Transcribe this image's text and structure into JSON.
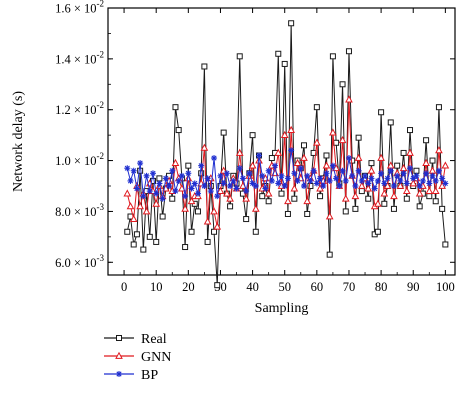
{
  "chart_data": {
    "type": "line",
    "xlabel": "Sampling",
    "ylabel": "Network delay (s)",
    "xlim": [
      -5,
      103
    ],
    "ylim": [
      0.0055,
      0.016
    ],
    "xticks": [
      0,
      10,
      20,
      30,
      40,
      50,
      60,
      70,
      80,
      90,
      100
    ],
    "yticks": [
      {
        "value": 0.006,
        "mantissa": "6.0",
        "exponent": "-3"
      },
      {
        "value": 0.008,
        "mantissa": "8.0",
        "exponent": "-3"
      },
      {
        "value": 0.01,
        "mantissa": "1.0",
        "exponent": "-2"
      },
      {
        "value": 0.012,
        "mantissa": "1.2",
        "exponent": "-2"
      },
      {
        "value": 0.014,
        "mantissa": "1.4",
        "exponent": "-2"
      },
      {
        "value": 0.016,
        "mantissa": "1.6",
        "exponent": "-2"
      }
    ],
    "grid": false,
    "legend_position": "bottom-left",
    "x": [
      1,
      2,
      3,
      4,
      5,
      6,
      7,
      8,
      9,
      10,
      11,
      12,
      13,
      14,
      15,
      16,
      17,
      18,
      19,
      20,
      21,
      22,
      23,
      24,
      25,
      26,
      27,
      28,
      29,
      30,
      31,
      32,
      33,
      34,
      35,
      36,
      37,
      38,
      39,
      40,
      41,
      42,
      43,
      44,
      45,
      46,
      47,
      48,
      49,
      50,
      51,
      52,
      53,
      54,
      55,
      56,
      57,
      58,
      59,
      60,
      61,
      62,
      63,
      64,
      65,
      66,
      67,
      68,
      69,
      70,
      71,
      72,
      73,
      74,
      75,
      76,
      77,
      78,
      79,
      80,
      81,
      82,
      83,
      84,
      85,
      86,
      87,
      88,
      89,
      90,
      91,
      92,
      93,
      94,
      95,
      96,
      97,
      98,
      99,
      100
    ],
    "series": [
      {
        "name": "Real",
        "color": "#1a1a1a",
        "marker": "square",
        "values": [
          0.0072,
          0.0078,
          0.0067,
          0.0071,
          0.0096,
          0.0065,
          0.0088,
          0.007,
          0.0092,
          0.0068,
          0.0093,
          0.0078,
          0.0089,
          0.0094,
          0.0085,
          0.0121,
          0.0112,
          0.0093,
          0.0066,
          0.0098,
          0.0072,
          0.0083,
          0.008,
          0.0095,
          0.0137,
          0.0068,
          0.009,
          0.0072,
          0.0051,
          0.009,
          0.0111,
          0.0087,
          0.0082,
          0.0094,
          0.0091,
          0.0141,
          0.0087,
          0.0077,
          0.0095,
          0.011,
          0.0072,
          0.0102,
          0.0086,
          0.009,
          0.0084,
          0.0101,
          0.0103,
          0.0142,
          0.0087,
          0.0138,
          0.0079,
          0.0154,
          0.0085,
          0.01,
          0.0097,
          0.0106,
          0.0079,
          0.009,
          0.0103,
          0.0121,
          0.0086,
          0.0093,
          0.0102,
          0.0063,
          0.0141,
          0.0107,
          0.0091,
          0.013,
          0.008,
          0.0143,
          0.01,
          0.0081,
          0.0109,
          0.0088,
          0.0094,
          0.0085,
          0.0099,
          0.0071,
          0.0072,
          0.0119,
          0.0083,
          0.009,
          0.0115,
          0.0081,
          0.0098,
          0.009,
          0.0103,
          0.0085,
          0.0112,
          0.009,
          0.0096,
          0.0082,
          0.0087,
          0.0108,
          0.0086,
          0.01,
          0.0084,
          0.0121,
          0.0081,
          0.0067
        ]
      },
      {
        "name": "GNN",
        "color": "#e0191f",
        "marker": "triangle",
        "values": [
          0.0087,
          0.0082,
          0.0077,
          0.009,
          0.0082,
          0.0087,
          0.008,
          0.0091,
          0.0088,
          0.0083,
          0.009,
          0.0086,
          0.0089,
          0.0092,
          0.0088,
          0.0099,
          0.0093,
          0.0089,
          0.0081,
          0.0093,
          0.0084,
          0.0086,
          0.0086,
          0.0091,
          0.0105,
          0.0076,
          0.0093,
          0.008,
          0.0074,
          0.0088,
          0.0096,
          0.0087,
          0.0085,
          0.0093,
          0.0089,
          0.0103,
          0.009,
          0.0085,
          0.0094,
          0.0098,
          0.0081,
          0.01,
          0.0089,
          0.0093,
          0.0087,
          0.0098,
          0.0095,
          0.0103,
          0.009,
          0.011,
          0.0084,
          0.0112,
          0.0089,
          0.0099,
          0.0093,
          0.0101,
          0.0084,
          0.0093,
          0.0096,
          0.0107,
          0.0089,
          0.0092,
          0.0098,
          0.0078,
          0.0111,
          0.0097,
          0.009,
          0.0108,
          0.0085,
          0.0124,
          0.0094,
          0.0086,
          0.0101,
          0.009,
          0.0093,
          0.0089,
          0.0096,
          0.0082,
          0.0083,
          0.0101,
          0.0087,
          0.009,
          0.0098,
          0.0086,
          0.0095,
          0.009,
          0.0097,
          0.0088,
          0.0103,
          0.0091,
          0.0093,
          0.0087,
          0.009,
          0.0099,
          0.0088,
          0.0096,
          0.0088,
          0.0104,
          0.009,
          0.0098
        ]
      },
      {
        "name": "BP",
        "color": "#1f2fd0",
        "marker": "star",
        "values": [
          0.0097,
          0.0092,
          0.0096,
          0.0089,
          0.0099,
          0.0086,
          0.0094,
          0.0088,
          0.0095,
          0.0087,
          0.0091,
          0.0085,
          0.0093,
          0.009,
          0.0096,
          0.0088,
          0.0092,
          0.0094,
          0.0086,
          0.0095,
          0.0089,
          0.0091,
          0.0087,
          0.0098,
          0.009,
          0.0093,
          0.0088,
          0.0101,
          0.0086,
          0.0094,
          0.0091,
          0.0095,
          0.009,
          0.0092,
          0.0089,
          0.0097,
          0.0093,
          0.0088,
          0.0095,
          0.0091,
          0.009,
          0.0102,
          0.0094,
          0.0089,
          0.0096,
          0.0092,
          0.0098,
          0.0091,
          0.0094,
          0.009,
          0.0093,
          0.0104,
          0.0095,
          0.0092,
          0.0097,
          0.009,
          0.0094,
          0.0092,
          0.0096,
          0.0091,
          0.0093,
          0.009,
          0.0095,
          0.0092,
          0.0098,
          0.0093,
          0.009,
          0.0096,
          0.0092,
          0.0101,
          0.0094,
          0.009,
          0.0096,
          0.0092,
          0.0094,
          0.0091,
          0.0093,
          0.0089,
          0.0092,
          0.0095,
          0.0091,
          0.0093,
          0.0096,
          0.009,
          0.0094,
          0.0092,
          0.0095,
          0.0091,
          0.0097,
          0.0093,
          0.0094,
          0.009,
          0.0092,
          0.0095,
          0.0091,
          0.0094,
          0.0092,
          0.0096,
          0.0093,
          0.0091
        ]
      }
    ]
  }
}
